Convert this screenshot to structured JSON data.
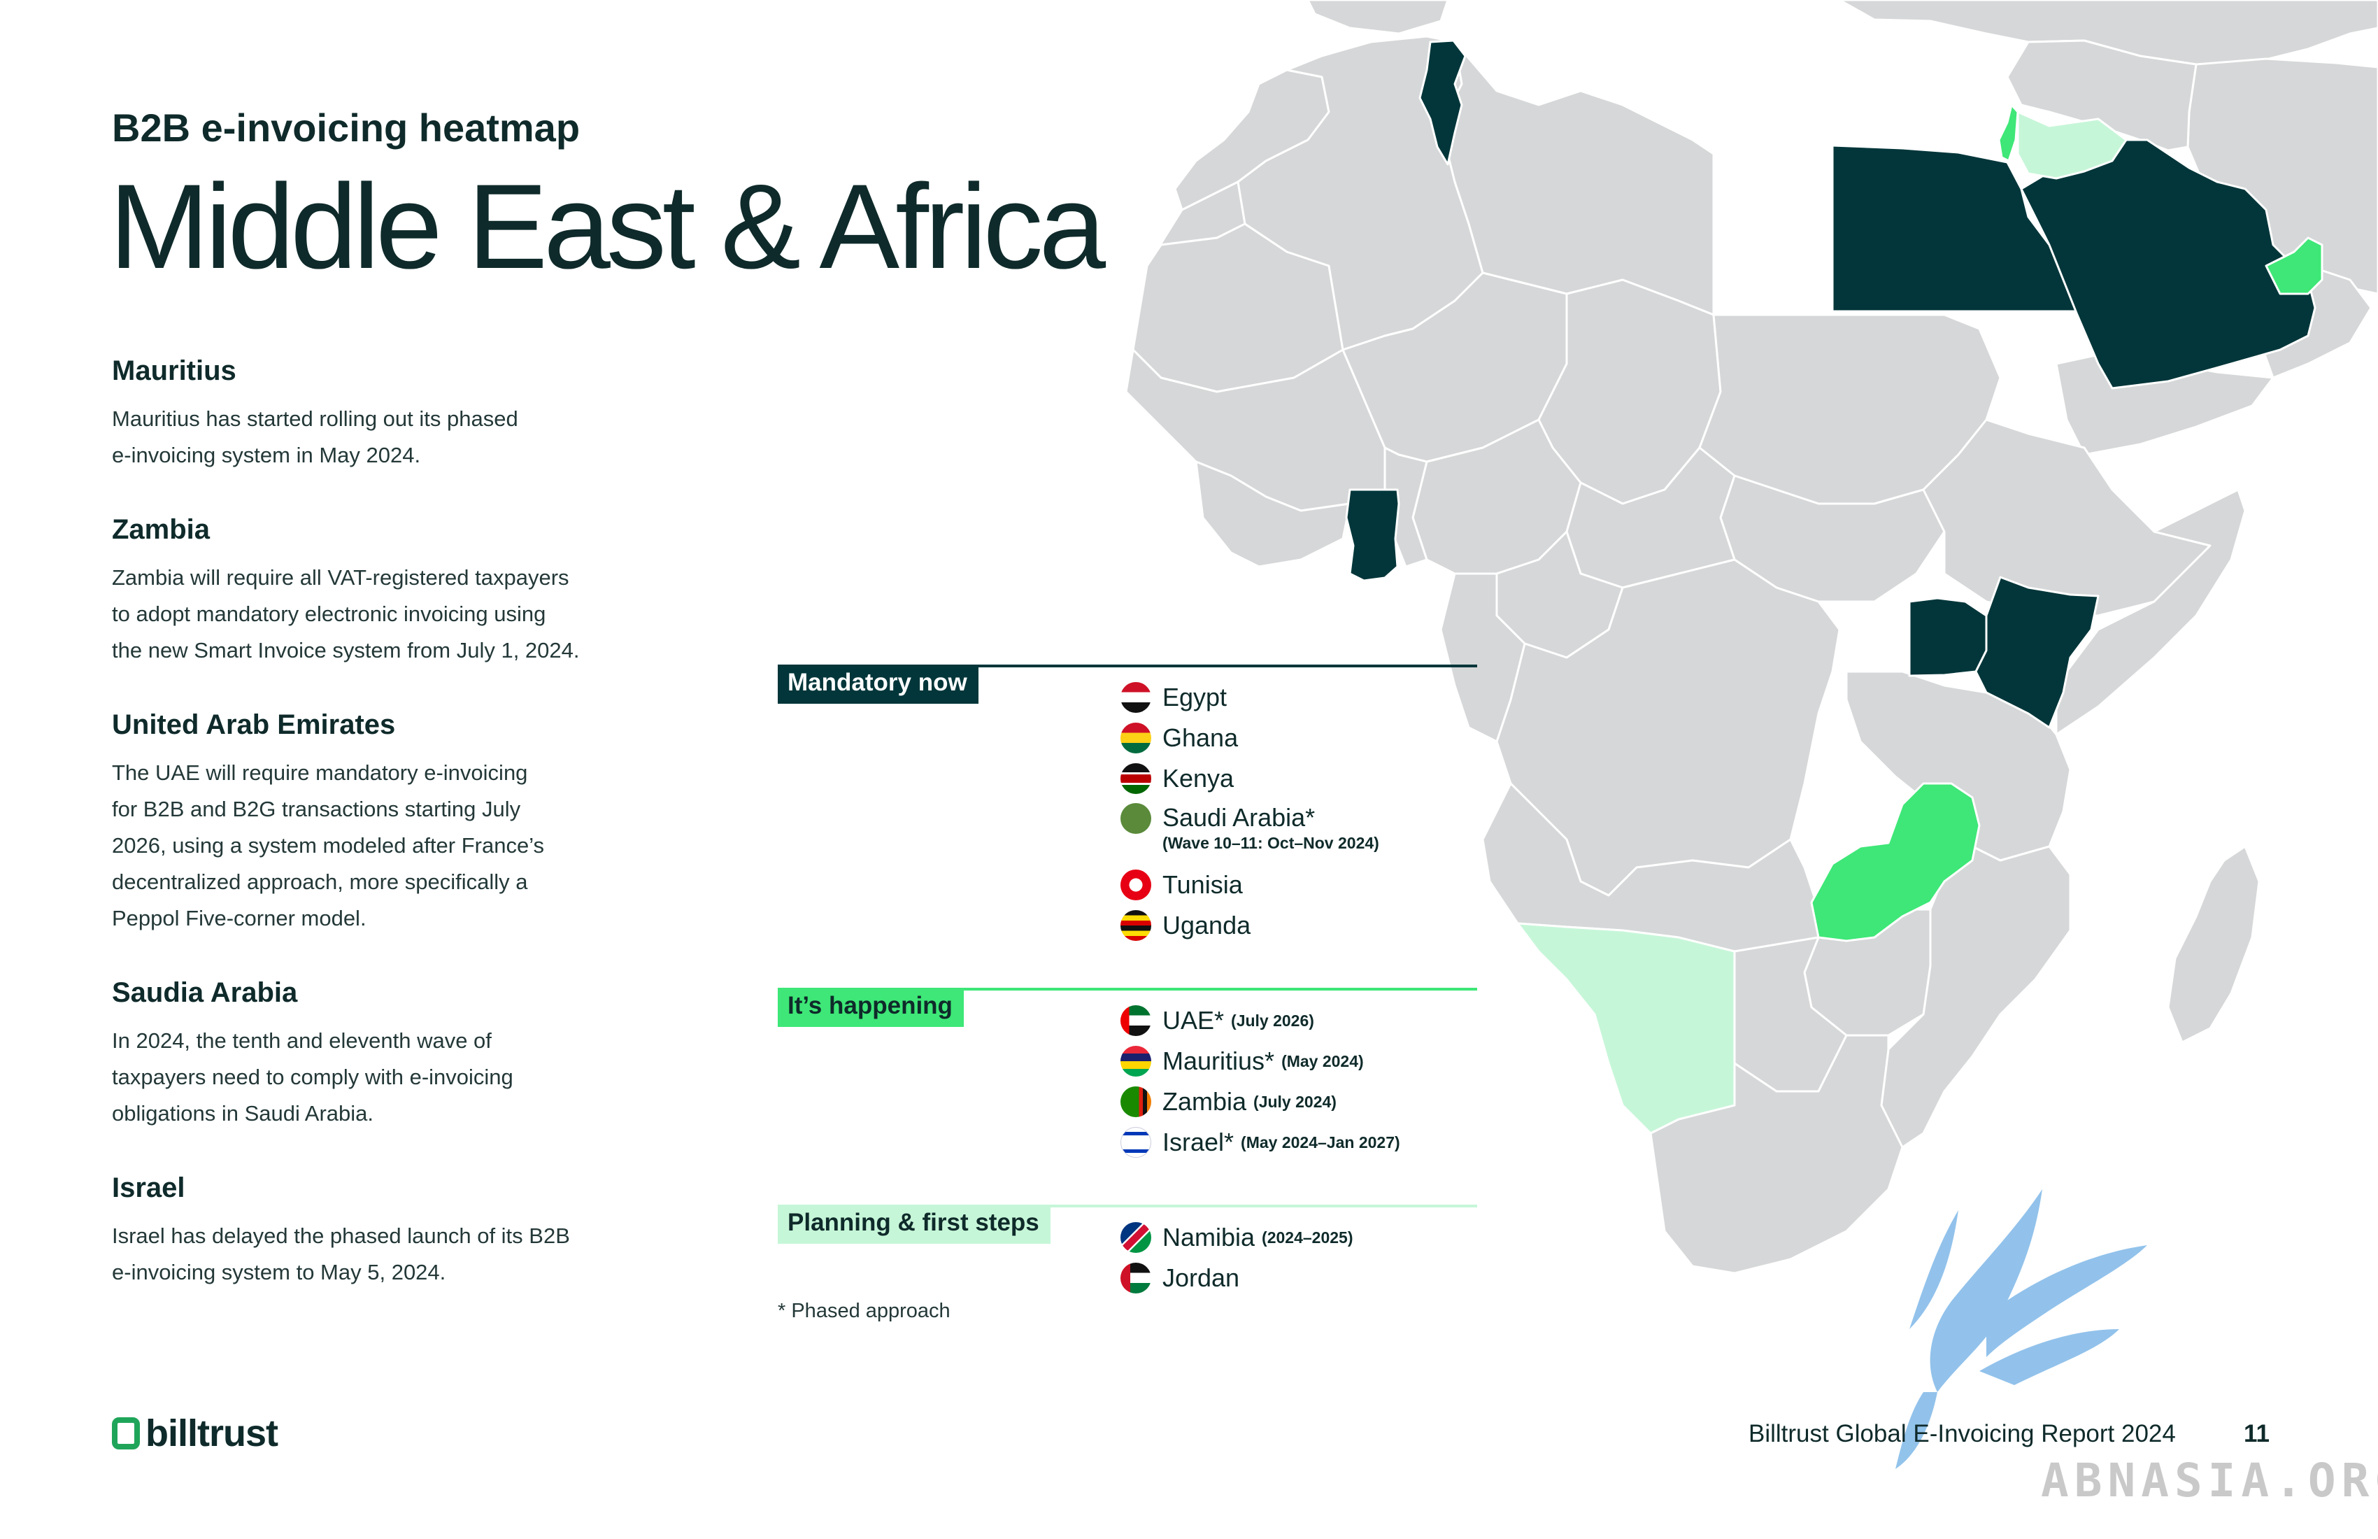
{
  "header": {
    "supertitle": "B2B e-invoicing heatmap",
    "title": "Middle East & Africa"
  },
  "notes": [
    {
      "heading": "Mauritius",
      "lines": [
        "Mauritius has started rolling out its phased",
        "e-invoicing system in May 2024."
      ]
    },
    {
      "heading": "Zambia",
      "lines": [
        "Zambia will require all VAT-registered taxpayers",
        "to adopt mandatory electronic invoicing using",
        "the new Smart Invoice system from July 1, 2024."
      ]
    },
    {
      "heading": "United Arab Emirates",
      "lines": [
        "The UAE will require mandatory e-invoicing",
        "for B2B and B2G transactions starting July",
        "2026, using a system modeled after France’s",
        "decentralized approach, more specifically a",
        "Peppol Five-corner model."
      ]
    },
    {
      "heading": "Saudia Arabia",
      "lines": [
        "In 2024, the tenth and eleventh wave of",
        "taxpayers need to comply with e-invoicing",
        "obligations in Saudi Arabia."
      ]
    },
    {
      "heading": "Israel",
      "lines": [
        "Israel has delayed the phased launch of its B2B",
        "e-invoicing system to May 5, 2024."
      ]
    }
  ],
  "legend": {
    "mandatory": {
      "label": "Mandatory now",
      "color": "#02363a",
      "countries": [
        {
          "name": "Egypt",
          "note": ""
        },
        {
          "name": "Ghana",
          "note": ""
        },
        {
          "name": "Kenya",
          "note": ""
        },
        {
          "name": "Saudi Arabia*",
          "note": "",
          "sub": "(Wave 10–11: Oct–Nov 2024)"
        },
        {
          "name": "Tunisia",
          "note": ""
        },
        {
          "name": "Uganda",
          "note": ""
        }
      ]
    },
    "happening": {
      "label": "It’s happening",
      "color": "#3ee777",
      "countries": [
        {
          "name": "UAE*",
          "note": "(July 2026)"
        },
        {
          "name": "Mauritius*",
          "note": "(May 2024)"
        },
        {
          "name": "Zambia",
          "note": "(July 2024)"
        },
        {
          "name": "Israel*",
          "note": "(May 2024–Jan 2027)"
        }
      ]
    },
    "planning": {
      "label": "Planning & first steps",
      "color": "#c6f6d8",
      "countries": [
        {
          "name": "Namibia",
          "note": "(2024–2025)"
        },
        {
          "name": "Jordan",
          "note": ""
        }
      ]
    },
    "footnote": "* Phased approach"
  },
  "map": {
    "base_color": "#d6d7d8",
    "border_color": "#ffffff"
  },
  "footer": {
    "logo": "billtrust",
    "report": "Billtrust Global E-Invoicing Report 2024",
    "page": "11",
    "watermark": "ABNASIA.ORG"
  }
}
